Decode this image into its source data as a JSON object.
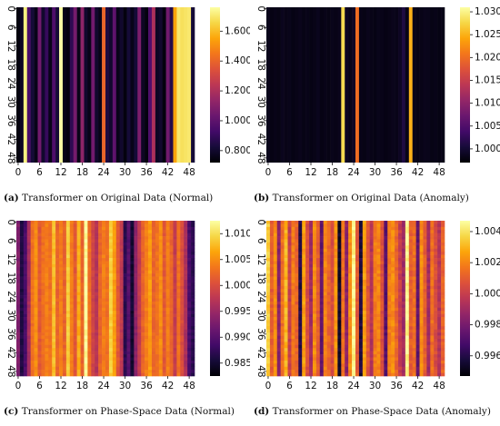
{
  "chart_data": [
    {
      "type": "heatmap",
      "panel_letter": "(a)",
      "caption": "Transformer on Original Data (Normal)",
      "rows": 50,
      "cols": 50,
      "tick_labels": [
        "0",
        "6",
        "12",
        "18",
        "24",
        "30",
        "36",
        "42",
        "48"
      ],
      "colorbar_ticks": [
        "0.800",
        "1.000",
        "1.200",
        "1.400",
        "1.600"
      ],
      "vmin": 0.72,
      "vmax": 1.76,
      "colormap": "inferno",
      "column_values": [
        0.74,
        0.78,
        1.72,
        0.95,
        0.82,
        0.76,
        1.05,
        0.8,
        0.9,
        0.76,
        0.96,
        0.82,
        1.76,
        0.76,
        0.74,
        0.88,
        1.06,
        0.76,
        1.12,
        0.8,
        0.76,
        1.05,
        0.8,
        0.76,
        1.4,
        0.84,
        0.8,
        1.0,
        0.76,
        0.8,
        0.74,
        0.82,
        0.76,
        0.82,
        1.08,
        0.78,
        0.74,
        0.96,
        1.2,
        0.78,
        0.8,
        0.74,
        1.05,
        0.86,
        1.55,
        1.7,
        1.68,
        1.69,
        1.7,
        0.82
      ],
      "row_noise": 0.0
    },
    {
      "type": "heatmap",
      "panel_letter": "(b)",
      "caption": "Transformer on Original Data (Anomaly)",
      "rows": 50,
      "cols": 50,
      "tick_labels": [
        "0",
        "6",
        "12",
        "18",
        "24",
        "30",
        "36",
        "42",
        "48"
      ],
      "colorbar_ticks": [
        "1.000",
        "1.005",
        "1.010",
        "1.015",
        "1.020",
        "1.025",
        "1.030"
      ],
      "vmin": 0.997,
      "vmax": 1.031,
      "colormap": "inferno",
      "column_values": [
        0.9985,
        0.998,
        0.9983,
        0.9981,
        0.9986,
        0.9982,
        0.9984,
        0.998,
        0.9982,
        0.9985,
        0.9981,
        0.9983,
        0.998,
        0.9982,
        0.9986,
        0.998,
        0.9983,
        0.9981,
        0.9984,
        0.9982,
        0.9985,
        1.028,
        0.999,
        0.9983,
        0.999,
        1.02,
        0.9983,
        0.9981,
        0.9985,
        0.9982,
        0.998,
        0.9984,
        0.9983,
        0.998,
        0.9982,
        0.9985,
        0.9983,
        0.999,
        1.001,
        0.9982,
        1.025,
        0.9983,
        0.998,
        0.9982,
        0.9985,
        0.9984,
        0.9981,
        0.9983,
        0.998,
        0.9982
      ],
      "row_noise": 0.0
    },
    {
      "type": "heatmap",
      "panel_letter": "(c)",
      "caption": "Transformer on Phase-Space Data (Normal)",
      "rows": 50,
      "cols": 50,
      "tick_labels": [
        "0",
        "6",
        "12",
        "18",
        "24",
        "30",
        "36",
        "42",
        "48"
      ],
      "colorbar_ticks": [
        "0.985",
        "0.990",
        "0.995",
        "1.000",
        "1.005",
        "1.010"
      ],
      "vmin": 0.9825,
      "vmax": 1.0125,
      "colormap": "inferno",
      "column_values": [
        0.993,
        0.986,
        0.989,
        0.996,
        1.003,
        1.005,
        1.001,
        1.003,
        1.004,
        1.003,
        1.008,
        1.002,
        1.004,
        1.002,
        1.009,
        1.004,
        1.001,
        1.007,
        1.002,
        1.012,
        1.003,
        0.999,
        0.997,
        1.002,
        1.004,
        1.003,
        1.009,
        1.006,
        1.001,
        0.998,
        0.987,
        0.99,
        0.985,
        0.994,
        0.998,
        1.002,
        1.004,
        1.006,
        1.002,
        1.003,
        1.005,
        1.001,
        1.004,
        1.002,
        0.998,
        1.003,
        1.0,
        0.996,
        0.989,
        0.987
      ],
      "row_noise": 0.0008
    },
    {
      "type": "heatmap",
      "panel_letter": "(d)",
      "caption": "Transformer on Phase-Space Data (Anomaly)",
      "rows": 50,
      "cols": 50,
      "tick_labels": [
        "0",
        "6",
        "12",
        "18",
        "24",
        "30",
        "36",
        "42",
        "48"
      ],
      "colorbar_ticks": [
        "0.996",
        "0.998",
        "1.000",
        "1.002",
        "1.004"
      ],
      "vmin": 0.9947,
      "vmax": 1.0047,
      "colormap": "inferno",
      "column_values": [
        1.0035,
        1.001,
        1.0022,
        0.9985,
        1.0015,
        1.003,
        1.0,
        1.0018,
        1.0012,
        0.996,
        1.0025,
        1.0005,
        0.999,
        1.0022,
        1.001,
        0.9975,
        1.002,
        1.0012,
        1.0005,
        1.0023,
        0.9955,
        1.0016,
        0.9985,
        1.0022,
        1.0045,
        1.001,
        0.9958,
        1.0025,
        1.0008,
        0.9995,
        1.0018,
        1.002,
        1.0006,
        0.9972,
        1.0018,
        1.0022,
        1.0012,
        1.0,
        0.999,
        1.0045,
        1.001,
        1.0015,
        0.9975,
        1.0022,
        1.001,
        0.999,
        1.0015,
        1.0005,
        0.9995,
        1.0012
      ],
      "row_noise": 0.0004
    }
  ]
}
